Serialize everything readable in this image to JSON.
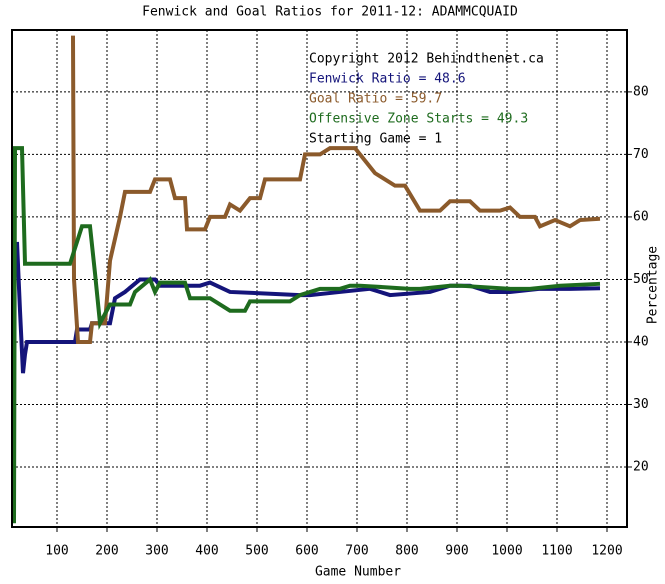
{
  "chart_data": {
    "type": "line",
    "title": "Fenwick and Goal Ratios for 2011-12: ADAMMCQUAID",
    "x_label": "Game Number",
    "y_label": "Percentage",
    "annotations": [
      "Copyright 2012 Behindthenet.ca",
      "Starting Game = 1"
    ],
    "xlim": [
      10,
      1240
    ],
    "ylim": [
      10.4,
      89.9
    ],
    "xticks": [
      100,
      200,
      300,
      400,
      500,
      600,
      700,
      800,
      900,
      1000,
      1100,
      1200
    ],
    "yticks": [
      20,
      30,
      40,
      50,
      60,
      70,
      80
    ],
    "grid": true,
    "series": [
      {
        "name": "Fenwick Ratio = 48.6",
        "color": "#14147a",
        "x": [
          20,
          26,
          32,
          36,
          40,
          136,
          140,
          166,
          170,
          206,
          216,
          236,
          266,
          296,
          306,
          386,
          406,
          446,
          586,
          606,
          666,
          726,
          766,
          846,
          886,
          926,
          966,
          1006,
          1066,
          1126,
          1186
        ],
        "values": [
          56,
          45,
          35,
          38,
          40,
          40,
          42,
          42,
          43,
          43,
          47,
          48,
          50,
          50,
          49,
          49,
          49.5,
          48,
          47.5,
          47.5,
          48,
          48.5,
          47.5,
          48,
          49,
          49,
          48,
          48,
          48.5,
          48.5,
          48.6
        ]
      },
      {
        "name": "Goal Ratio = 59.7",
        "color": "#8b5a2b",
        "x": [
          132,
          134,
          138,
          142,
          166,
          170,
          196,
          206,
          226,
          236,
          286,
          296,
          326,
          336,
          356,
          360,
          396,
          406,
          436,
          446,
          466,
          486,
          506,
          516,
          586,
          596,
          626,
          646,
          696,
          706,
          736,
          776,
          796,
          826,
          866,
          886,
          926,
          946,
          986,
          1006,
          1026,
          1056,
          1066,
          1096,
          1126,
          1146,
          1186
        ],
        "values": [
          89,
          50,
          45,
          40,
          40,
          43,
          43,
          53,
          60,
          64,
          64,
          66,
          66,
          63,
          63,
          58,
          58,
          60,
          60,
          62,
          61,
          63,
          63,
          66,
          66,
          70,
          70,
          71,
          71,
          70,
          67,
          65,
          65,
          61,
          61,
          62.5,
          62.5,
          61,
          61,
          61.5,
          60,
          60,
          58.5,
          59.5,
          58.5,
          59.5,
          59.7
        ]
      },
      {
        "name": "Offensive Zone Starts = 49.3",
        "color": "#1e6b1e",
        "x": [
          14,
          16,
          30,
          36,
          126,
          136,
          150,
          166,
          176,
          186,
          206,
          246,
          256,
          286,
          296,
          306,
          356,
          366,
          406,
          446,
          476,
          486,
          566,
          586,
          626,
          666,
          686,
          706,
          806,
          826,
          886,
          906,
          1006,
          1046,
          1106,
          1186
        ],
        "values": [
          11,
          71,
          71,
          52.5,
          52.5,
          55,
          58.5,
          58.5,
          51,
          43,
          46,
          46,
          48,
          50,
          48,
          49.5,
          49.5,
          47,
          47,
          45,
          45,
          46.5,
          46.5,
          47.5,
          48.5,
          48.5,
          49,
          49,
          48.5,
          48.5,
          49,
          49,
          48.5,
          48.5,
          49,
          49.3
        ]
      }
    ]
  }
}
